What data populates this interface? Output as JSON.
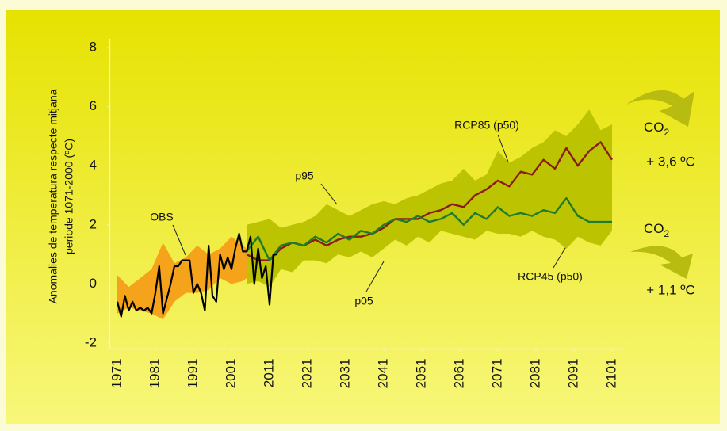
{
  "chart_data": {
    "type": "line",
    "y_label": [
      "Anomalies de temperatura respecte mitjana",
      "periode 1071-2000 (ºC)"
    ],
    "xlim": [
      1969,
      2104
    ],
    "xticks": [
      1971,
      1981,
      1991,
      2001,
      2011,
      2021,
      2031,
      2041,
      2051,
      2061,
      2071,
      2081,
      2091,
      2101
    ],
    "ylim": [
      -2.2,
      8.3
    ],
    "yticks": [
      -2,
      0,
      2,
      4,
      6,
      8
    ],
    "grid": false,
    "bands": [
      {
        "color": "#f6a31c",
        "x": [
          1971,
          1974,
          1977,
          1980,
          1983,
          1986,
          1989,
          1992,
          1995,
          1998,
          2001,
          2004,
          2007
        ],
        "low": [
          -1.0,
          -0.8,
          -0.9,
          -1.0,
          -1.2,
          -0.6,
          -0.3,
          -0.3,
          -0.2,
          0.2,
          0.0,
          0.1,
          0.4
        ],
        "high": [
          0.3,
          -0.1,
          0.2,
          0.5,
          1.4,
          0.7,
          0.9,
          1.3,
          1.0,
          1.2,
          1.6,
          1.3,
          1.0
        ]
      },
      {
        "color": "#bcc402",
        "low_label": "p05",
        "high_label": "p95",
        "x": [
          2005,
          2008,
          2011,
          2014,
          2017,
          2020,
          2023,
          2026,
          2029,
          2032,
          2035,
          2038,
          2041,
          2044,
          2047,
          2050,
          2053,
          2056,
          2059,
          2062,
          2065,
          2068,
          2071,
          2074,
          2077,
          2080,
          2083,
          2086,
          2089,
          2092,
          2095,
          2098,
          2101
        ],
        "low": [
          0.0,
          0.1,
          -0.1,
          0.5,
          0.4,
          0.8,
          0.8,
          0.7,
          1.0,
          0.9,
          1.1,
          0.9,
          1.2,
          1.5,
          1.3,
          1.6,
          1.4,
          1.8,
          1.7,
          1.6,
          1.5,
          1.8,
          1.7,
          1.7,
          1.6,
          1.8,
          1.6,
          1.5,
          1.2,
          1.6,
          1.4,
          1.3,
          1.8
        ],
        "high": [
          2.0,
          2.1,
          2.2,
          1.9,
          2.0,
          2.1,
          2.3,
          2.7,
          2.5,
          2.3,
          2.5,
          2.7,
          2.8,
          2.7,
          2.9,
          3.0,
          3.2,
          3.4,
          3.5,
          3.9,
          3.5,
          3.7,
          4.5,
          4.1,
          4.3,
          4.6,
          4.8,
          5.2,
          5.0,
          5.4,
          5.9,
          5.2,
          5.4
        ]
      }
    ],
    "series": [
      {
        "name": "RCP85 (p50)",
        "color": "#8c1c1c",
        "x": [
          2005,
          2008,
          2011,
          2014,
          2017,
          2020,
          2023,
          2026,
          2029,
          2032,
          2035,
          2038,
          2041,
          2044,
          2047,
          2050,
          2053,
          2056,
          2059,
          2062,
          2065,
          2068,
          2071,
          2074,
          2077,
          2080,
          2083,
          2086,
          2089,
          2092,
          2095,
          2098,
          2101
        ],
        "values": [
          1.0,
          0.8,
          0.8,
          1.2,
          1.4,
          1.3,
          1.5,
          1.3,
          1.5,
          1.6,
          1.6,
          1.7,
          1.9,
          2.2,
          2.2,
          2.2,
          2.4,
          2.5,
          2.7,
          2.6,
          3.0,
          3.2,
          3.5,
          3.3,
          3.8,
          3.7,
          4.2,
          3.9,
          4.6,
          4.0,
          4.5,
          4.8,
          4.2
        ]
      },
      {
        "name": "RCP45 (p50)",
        "color": "#1e7a2e",
        "x": [
          2005,
          2008,
          2011,
          2014,
          2017,
          2020,
          2023,
          2026,
          2029,
          2032,
          2035,
          2038,
          2041,
          2044,
          2047,
          2050,
          2053,
          2056,
          2059,
          2062,
          2065,
          2068,
          2071,
          2074,
          2077,
          2080,
          2083,
          2086,
          2089,
          2092,
          2095,
          2098,
          2101
        ],
        "values": [
          1.1,
          1.6,
          0.8,
          1.3,
          1.4,
          1.3,
          1.6,
          1.4,
          1.7,
          1.5,
          1.8,
          1.7,
          2.0,
          2.2,
          2.1,
          2.3,
          2.1,
          2.2,
          2.4,
          2.0,
          2.4,
          2.2,
          2.6,
          2.3,
          2.4,
          2.3,
          2.5,
          2.4,
          2.9,
          2.3,
          2.1,
          2.1,
          2.1
        ]
      },
      {
        "name": "OBS",
        "color": "#000000",
        "x": [
          1971,
          1972,
          1973,
          1974,
          1975,
          1976,
          1977,
          1978,
          1979,
          1980,
          1981,
          1982,
          1983,
          1984,
          1985,
          1986,
          1987,
          1988,
          1989,
          1990,
          1991,
          1992,
          1993,
          1994,
          1995,
          1996,
          1997,
          1998,
          1999,
          2000,
          2001,
          2002,
          2003,
          2004,
          2005,
          2006,
          2007,
          2008,
          2009,
          2010,
          2011,
          2012,
          2013
        ],
        "values": [
          -0.6,
          -1.1,
          -0.4,
          -0.9,
          -0.6,
          -0.9,
          -0.8,
          -0.9,
          -0.8,
          -1.0,
          -0.3,
          0.6,
          -1.0,
          -0.5,
          0.0,
          0.6,
          0.6,
          0.8,
          0.8,
          0.8,
          -0.3,
          0.0,
          -0.3,
          -0.9,
          1.3,
          -0.4,
          -0.6,
          1.0,
          0.5,
          0.9,
          0.5,
          1.2,
          1.7,
          1.1,
          1.1,
          1.6,
          0.0,
          1.2,
          0.2,
          0.6,
          -0.7,
          1.0,
          1.0
        ]
      }
    ],
    "right_labels": [
      {
        "gas": "CO",
        "gas_sub": "2",
        "change": "+ 3,6 ºC"
      },
      {
        "gas": "CO",
        "gas_sub": "2",
        "change": "+ 1,1 ºC"
      }
    ]
  }
}
